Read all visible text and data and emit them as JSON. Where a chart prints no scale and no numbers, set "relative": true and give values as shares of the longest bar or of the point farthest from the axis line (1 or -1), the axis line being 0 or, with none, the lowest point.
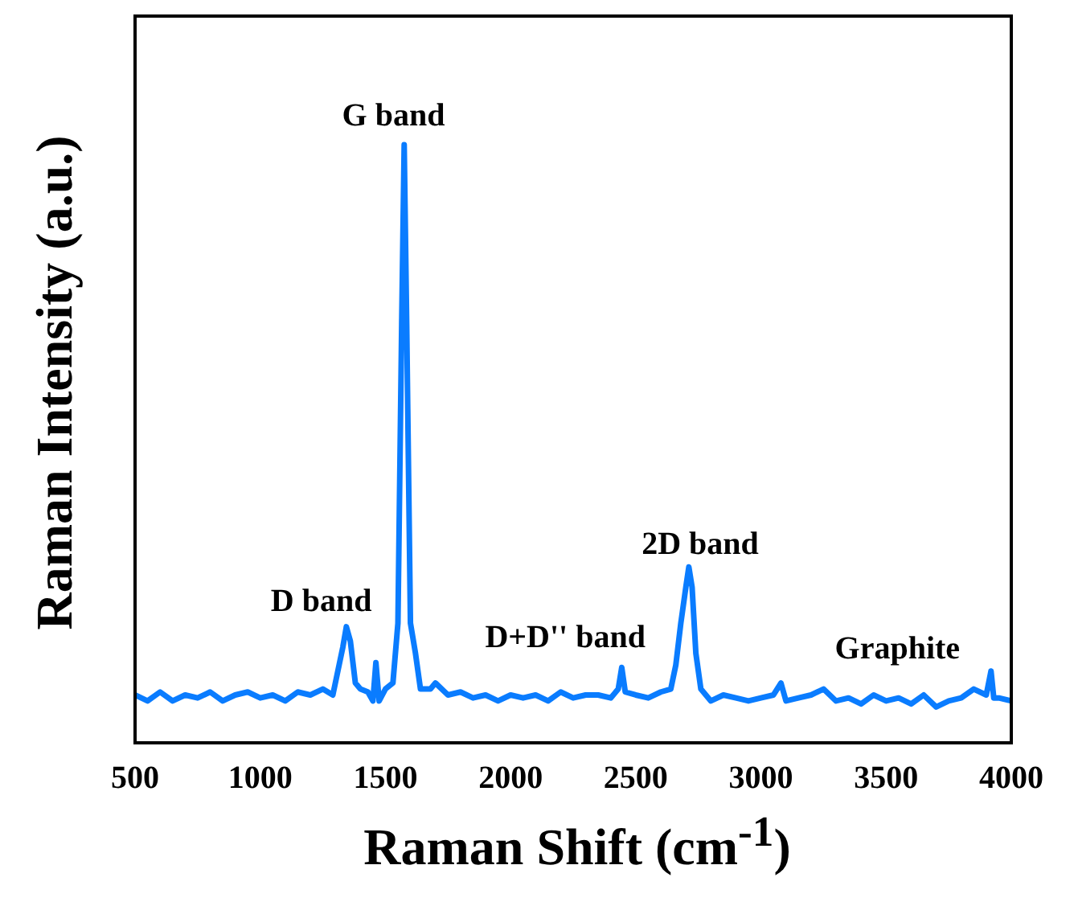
{
  "chart_data": {
    "type": "line",
    "xlabel": "Raman Shift (cm$^{-1}$)",
    "ylabel": "Raman Intensity (a.u.)",
    "relative": true,
    "xlim": [
      500,
      4000
    ],
    "xticks": [
      500,
      1000,
      1500,
      2000,
      2500,
      3000,
      3500,
      4000
    ],
    "grid": false,
    "legend": false,
    "marker": "none",
    "line_style": "solid",
    "x": [
      500,
      550,
      600,
      650,
      700,
      750,
      800,
      850,
      900,
      950,
      1000,
      1050,
      1100,
      1150,
      1200,
      1250,
      1290,
      1310,
      1330,
      1344,
      1360,
      1380,
      1400,
      1430,
      1450,
      1462,
      1475,
      1500,
      1530,
      1550,
      1565,
      1575,
      1585,
      1600,
      1620,
      1640,
      1680,
      1700,
      1750,
      1800,
      1850,
      1900,
      1950,
      2000,
      2050,
      2100,
      2150,
      2200,
      2250,
      2300,
      2350,
      2400,
      2430,
      2444,
      2458,
      2500,
      2550,
      2600,
      2640,
      2660,
      2680,
      2700,
      2712,
      2725,
      2740,
      2760,
      2800,
      2850,
      2900,
      2950,
      3000,
      3050,
      3080,
      3100,
      3150,
      3200,
      3250,
      3300,
      3350,
      3400,
      3450,
      3500,
      3550,
      3600,
      3650,
      3700,
      3750,
      3800,
      3850,
      3900,
      3919,
      3930,
      3950,
      4000
    ],
    "series": [
      {
        "color": "#0a7cff",
        "values": [
          0.08,
          0.07,
          0.085,
          0.07,
          0.08,
          0.075,
          0.085,
          0.07,
          0.08,
          0.085,
          0.075,
          0.08,
          0.07,
          0.085,
          0.08,
          0.09,
          0.08,
          0.12,
          0.16,
          0.194,
          0.17,
          0.1,
          0.09,
          0.085,
          0.07,
          0.134,
          0.07,
          0.09,
          0.1,
          0.2,
          0.7,
          1.0,
          0.7,
          0.2,
          0.15,
          0.09,
          0.09,
          0.1,
          0.08,
          0.085,
          0.075,
          0.08,
          0.07,
          0.08,
          0.075,
          0.08,
          0.07,
          0.085,
          0.075,
          0.08,
          0.08,
          0.075,
          0.09,
          0.126,
          0.085,
          0.08,
          0.075,
          0.085,
          0.09,
          0.13,
          0.2,
          0.26,
          0.294,
          0.26,
          0.15,
          0.09,
          0.07,
          0.08,
          0.075,
          0.07,
          0.075,
          0.08,
          0.1,
          0.07,
          0.075,
          0.08,
          0.09,
          0.07,
          0.075,
          0.065,
          0.08,
          0.07,
          0.075,
          0.065,
          0.08,
          0.06,
          0.07,
          0.075,
          0.09,
          0.08,
          0.12,
          0.075,
          0.075,
          0.07
        ]
      }
    ],
    "annotations": [
      "G band",
      "D band",
      "D+D'' band",
      "2D band",
      "Graphite"
    ]
  }
}
